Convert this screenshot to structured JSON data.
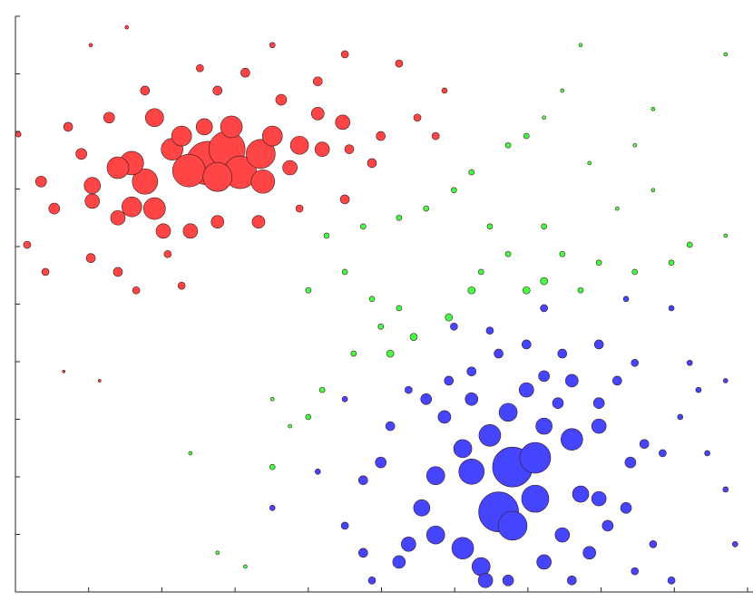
{
  "chart_data": {
    "type": "bubble",
    "xlim": [
      0,
      10
    ],
    "ylim": [
      0,
      10
    ],
    "xticks": [
      0,
      1,
      2,
      3,
      4,
      5,
      6,
      7,
      8,
      9,
      10
    ],
    "yticks": [
      0,
      1,
      2,
      3,
      4,
      5,
      6,
      7,
      8,
      9,
      10
    ],
    "series": [
      {
        "color": "#ff4545",
        "x": [
          2.63,
          2.89,
          2.37,
          3.07,
          3.35,
          2.76,
          1.77,
          1.59,
          3.38,
          2.14,
          2.27,
          1.4,
          3.51,
          1.9,
          1.59,
          1.05,
          1.05,
          2.95,
          1.9,
          3.88,
          4.19,
          3.75,
          4.13,
          4.47,
          2.58,
          1.4,
          2.02,
          2.39,
          2.76,
          3.32,
          0.53,
          0.35,
          0.9,
          1.28,
          0.72,
          1.77,
          2.76,
          3.14,
          3.63,
          4.13,
          4.56,
          4.5,
          4.87,
          4.99,
          5.49,
          5.74,
          1.03,
          1.4,
          1.65,
          0.41,
          0.16,
          2.27,
          2.08,
          2.52,
          4.5,
          5.24,
          3.88,
          0.04,
          1.03,
          1.52,
          3.51,
          0.66,
          1.15,
          5.86
        ],
        "values": [
          7.45,
          7.69,
          7.32,
          7.29,
          7.61,
          7.21,
          7.13,
          7.45,
          7.13,
          7.69,
          7.92,
          7.37,
          7.92,
          6.66,
          6.69,
          7.06,
          6.79,
          8.08,
          8.24,
          7.76,
          7.69,
          7.37,
          8.31,
          8.16,
          8.08,
          6.5,
          6.27,
          6.27,
          6.43,
          6.43,
          6.66,
          7.13,
          7.61,
          8.24,
          8.08,
          8.71,
          8.71,
          9.02,
          8.55,
          8.87,
          7.69,
          6.82,
          7.45,
          7.92,
          8.24,
          7.92,
          5.8,
          5.56,
          5.24,
          5.56,
          6.03,
          5.32,
          5.87,
          9.1,
          9.34,
          9.18,
          6.66,
          7.95,
          9.5,
          9.81,
          9.5,
          3.83,
          3.67,
          8.71
        ],
        "sizes": [
          24,
          20,
          18,
          18,
          16,
          16,
          14,
          13,
          13,
          12,
          11,
          12,
          11,
          12,
          11,
          9,
          8,
          12,
          10,
          10,
          8,
          8,
          7,
          8,
          9,
          8,
          8,
          8,
          7,
          7,
          6,
          6,
          6,
          6,
          5,
          5,
          5,
          5,
          6,
          5,
          5,
          5,
          5,
          5,
          4,
          4,
          5,
          5,
          4,
          4,
          4,
          4,
          4,
          4,
          4,
          4,
          4,
          3,
          2,
          2,
          3,
          1.5,
          1.5,
          3
        ]
      },
      {
        "color": "#4545ff",
        "x": [
          6.79,
          6.6,
          7.1,
          7.1,
          6.79,
          6.23,
          6.48,
          7.6,
          5.74,
          6.11,
          6.73,
          7.22,
          7.72,
          7.97,
          7.97,
          6.11,
          6.36,
          6.42,
          5.74,
          5.55,
          5.37,
          5.24,
          5.86,
          5.61,
          6.23,
          6.98,
          7.22,
          7.6,
          7.41,
          7.22,
          7.47,
          7.84,
          8.09,
          8.34,
          8.4,
          8.59,
          7.97,
          8.22,
          8.46,
          7.97,
          7.47,
          6.98,
          6.6,
          6.23,
          5.92,
          5.37,
          5.12,
          4.99,
          4.75,
          4.5,
          4.75,
          4.87,
          6.73,
          7.6,
          8.46,
          8.71,
          8.96,
          8.84,
          9.08,
          9.33,
          9.45,
          9.7,
          9.83,
          9.21,
          8.96,
          8.34,
          7.22,
          6.48,
          5.99,
          3.51,
          4.13,
          4.5,
          9.7
        ],
        "values": [
          2.17,
          1.39,
          2.33,
          1.62,
          1.15,
          2.09,
          2.72,
          2.65,
          2.02,
          2.49,
          3.12,
          2.88,
          1.7,
          1.62,
          2.88,
          0.76,
          0.44,
          0.2,
          0.99,
          1.46,
          0.83,
          0.52,
          3.04,
          3.35,
          3.35,
          3.51,
          3.75,
          3.67,
          3.28,
          0.52,
          0.99,
          0.68,
          1.15,
          1.46,
          2.25,
          2.57,
          3.28,
          3.67,
          3.98,
          4.3,
          4.14,
          4.3,
          4.14,
          3.83,
          3.67,
          3.51,
          2.88,
          2.25,
          1.94,
          1.15,
          0.68,
          0.2,
          0.2,
          0.2,
          0.36,
          0.83,
          0.2,
          2.41,
          3.04,
          3.51,
          2.41,
          1.78,
          0.83,
          3.98,
          4.93,
          5.09,
          4.93,
          4.54,
          4.61,
          1.46,
          2.09,
          3.35,
          3.67
        ],
        "sizes": [
          22,
          22,
          17,
          15,
          16,
          14,
          12,
          12,
          10,
          10,
          10,
          9,
          9,
          8,
          8,
          12,
          10,
          8,
          10,
          9,
          8,
          7,
          7,
          6,
          7,
          8,
          6,
          7,
          6,
          8,
          8,
          7,
          6,
          6,
          6,
          5,
          6,
          5,
          4,
          5,
          5,
          5,
          5,
          5,
          5,
          4,
          5,
          6,
          5,
          4,
          5,
          4,
          6,
          5,
          4,
          4,
          4,
          4,
          3,
          3,
          3,
          3,
          3,
          3,
          3,
          3,
          4,
          4,
          4,
          3,
          3,
          3,
          2.5
        ]
      },
      {
        "color": "#45ff45",
        "x": [
          6.23,
          5.92,
          5.44,
          5.12,
          4.62,
          4.99,
          5.24,
          4.87,
          4.5,
          4.0,
          4.25,
          4.75,
          5.24,
          5.61,
          5.99,
          6.23,
          6.73,
          6.98,
          7.22,
          7.47,
          6.48,
          6.73,
          7.22,
          7.47,
          7.97,
          7.72,
          6.98,
          7.22,
          8.46,
          8.96,
          9.21,
          9.7,
          8.22,
          8.71,
          7.84,
          8.46,
          4.19,
          4.0,
          3.75,
          3.51,
          3.51,
          3.14,
          2.76,
          2.39,
          6.36,
          9.7,
          8.71,
          7.72
        ],
        "values": [
          5.24,
          4.77,
          4.43,
          4.14,
          4.14,
          4.61,
          4.93,
          5.09,
          5.56,
          5.24,
          6.19,
          6.35,
          6.5,
          6.66,
          6.98,
          7.29,
          7.76,
          7.92,
          8.24,
          8.71,
          6.35,
          5.87,
          6.35,
          5.87,
          5.72,
          5.24,
          5.24,
          5.4,
          5.56,
          5.72,
          6.03,
          6.19,
          6.66,
          6.98,
          7.45,
          7.76,
          3.51,
          3.04,
          2.88,
          3.35,
          2.17,
          0.44,
          0.68,
          2.41,
          5.56,
          9.34,
          8.39,
          9.5
        ],
        "sizes": [
          4,
          4,
          4,
          4,
          3,
          3,
          3,
          3,
          3,
          3,
          3,
          3,
          3,
          3,
          3,
          3,
          3,
          3,
          2,
          2,
          3,
          3,
          3,
          3,
          3,
          3,
          4,
          4,
          3,
          3,
          3,
          2,
          2,
          2,
          2,
          2,
          3,
          3,
          2,
          2,
          3,
          2,
          2,
          2,
          3,
          2,
          2,
          2
        ]
      }
    ]
  }
}
